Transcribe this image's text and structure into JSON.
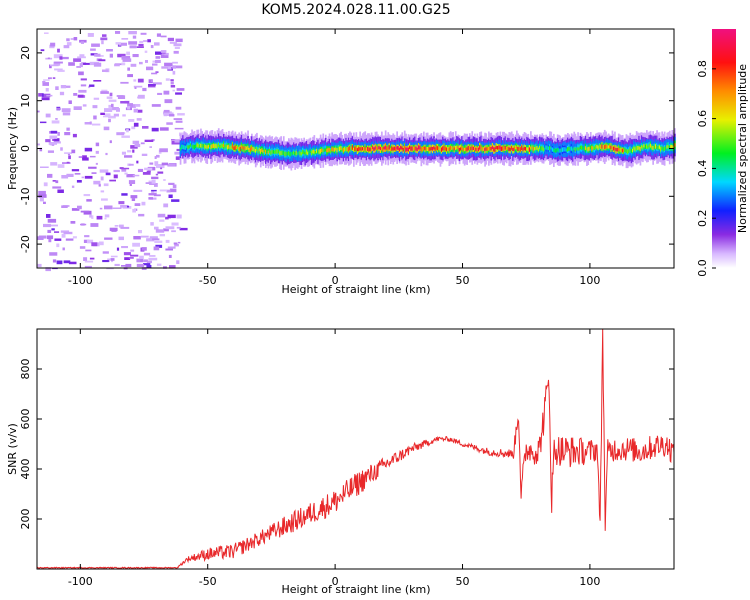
{
  "title": "KOM5.2024.028.11.00.G25",
  "chart_data": [
    {
      "type": "heatmap",
      "xlabel": "Height of straight line (km)",
      "ylabel": "Frequency (Hz)",
      "xlim": [
        -117,
        133
      ],
      "ylim": [
        -25,
        25
      ],
      "xticks": [
        -100,
        -50,
        0,
        50,
        100
      ],
      "yticks": [
        -20,
        -10,
        0,
        10,
        20
      ],
      "signal": {
        "description": "narrow band near 0 Hz from about -60 km to 133 km",
        "x": [
          -61,
          -57,
          -45,
          -35,
          -25,
          -15,
          -5,
          5,
          15,
          25,
          35,
          45,
          55,
          65,
          75,
          82,
          88,
          95,
          100,
          105,
          110,
          115,
          122,
          128,
          133
        ],
        "center_hz": [
          0.0,
          0.5,
          0.5,
          0.0,
          -0.8,
          -1.0,
          -0.5,
          0.0,
          0.0,
          0.0,
          0.0,
          0.0,
          0.0,
          0.0,
          0.0,
          0.0,
          -0.3,
          0.0,
          0.0,
          0.5,
          0.0,
          -0.5,
          0.5,
          0.0,
          0.5
        ],
        "peak_amplitude": [
          0.4,
          0.5,
          0.6,
          0.75,
          0.55,
          0.5,
          0.6,
          0.7,
          0.85,
          0.9,
          0.8,
          0.75,
          0.8,
          0.85,
          0.8,
          0.45,
          0.4,
          0.5,
          0.6,
          0.7,
          0.85,
          0.55,
          0.6,
          0.5,
          0.6
        ]
      },
      "colorbar": {
        "label": "Normalized spectral amplitude",
        "ticks": [
          "0.0",
          "0.2",
          "0.4",
          "0.6",
          "0.8"
        ],
        "range": [
          0,
          0.96
        ],
        "colormap": "rainbow (white → violet → blue → cyan → green → yellow → red → pink)"
      }
    },
    {
      "type": "line",
      "xlabel": "Height of straight line (km)",
      "ylabel": "SNR (v/v)",
      "xlim": [
        -117,
        133
      ],
      "ylim": [
        0,
        960
      ],
      "xticks": [
        -100,
        -50,
        0,
        50,
        100
      ],
      "yticks": [
        200,
        400,
        600,
        800
      ],
      "color": "#e8282a",
      "series": [
        {
          "x": [
            -117,
            -100,
            -80,
            -62,
            -58,
            -50,
            -40,
            -30,
            -20,
            -10,
            0,
            10,
            20,
            30,
            35,
            40,
            45,
            50,
            60,
            70,
            72,
            73,
            75,
            80,
            84,
            85,
            86,
            90,
            95,
            100,
            103,
            104,
            105,
            106,
            107,
            110,
            115,
            120,
            125,
            130,
            133
          ],
          "y": [
            5,
            5,
            5,
            5,
            40,
            60,
            70,
            120,
            170,
            220,
            270,
            350,
            420,
            480,
            500,
            520,
            520,
            500,
            470,
            460,
            640,
            300,
            480,
            470,
            760,
            270,
            480,
            470,
            470,
            470,
            480,
            150,
            960,
            180,
            470,
            480,
            480,
            470,
            490,
            500,
            460
          ],
          "noise_amplitude": [
            2,
            2,
            2,
            2,
            10,
            25,
            30,
            30,
            40,
            45,
            50,
            50,
            30,
            20,
            15,
            10,
            10,
            10,
            15,
            20,
            60,
            60,
            50,
            60,
            80,
            80,
            60,
            70,
            60,
            50,
            50,
            50,
            50,
            50,
            50,
            50,
            50,
            50,
            50,
            50,
            50
          ]
        }
      ]
    }
  ]
}
